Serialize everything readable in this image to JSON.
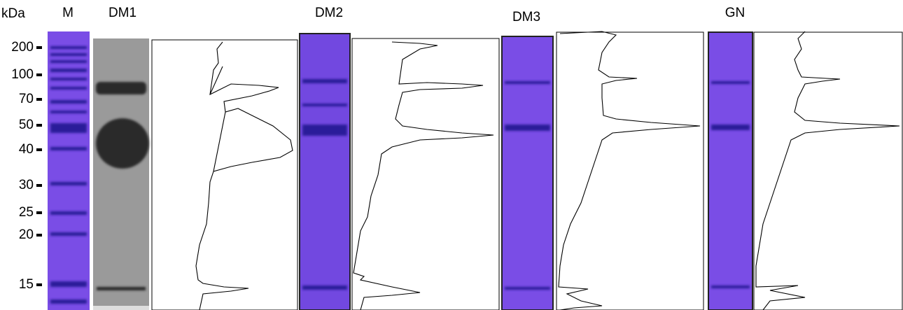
{
  "header": {
    "unit": "kDa",
    "lanes": [
      "M",
      "DM1",
      "DM2",
      "DM3",
      "GN"
    ]
  },
  "markers": [
    "200",
    "100",
    "70",
    "50",
    "40",
    "30",
    "25",
    "20",
    "15"
  ]
}
